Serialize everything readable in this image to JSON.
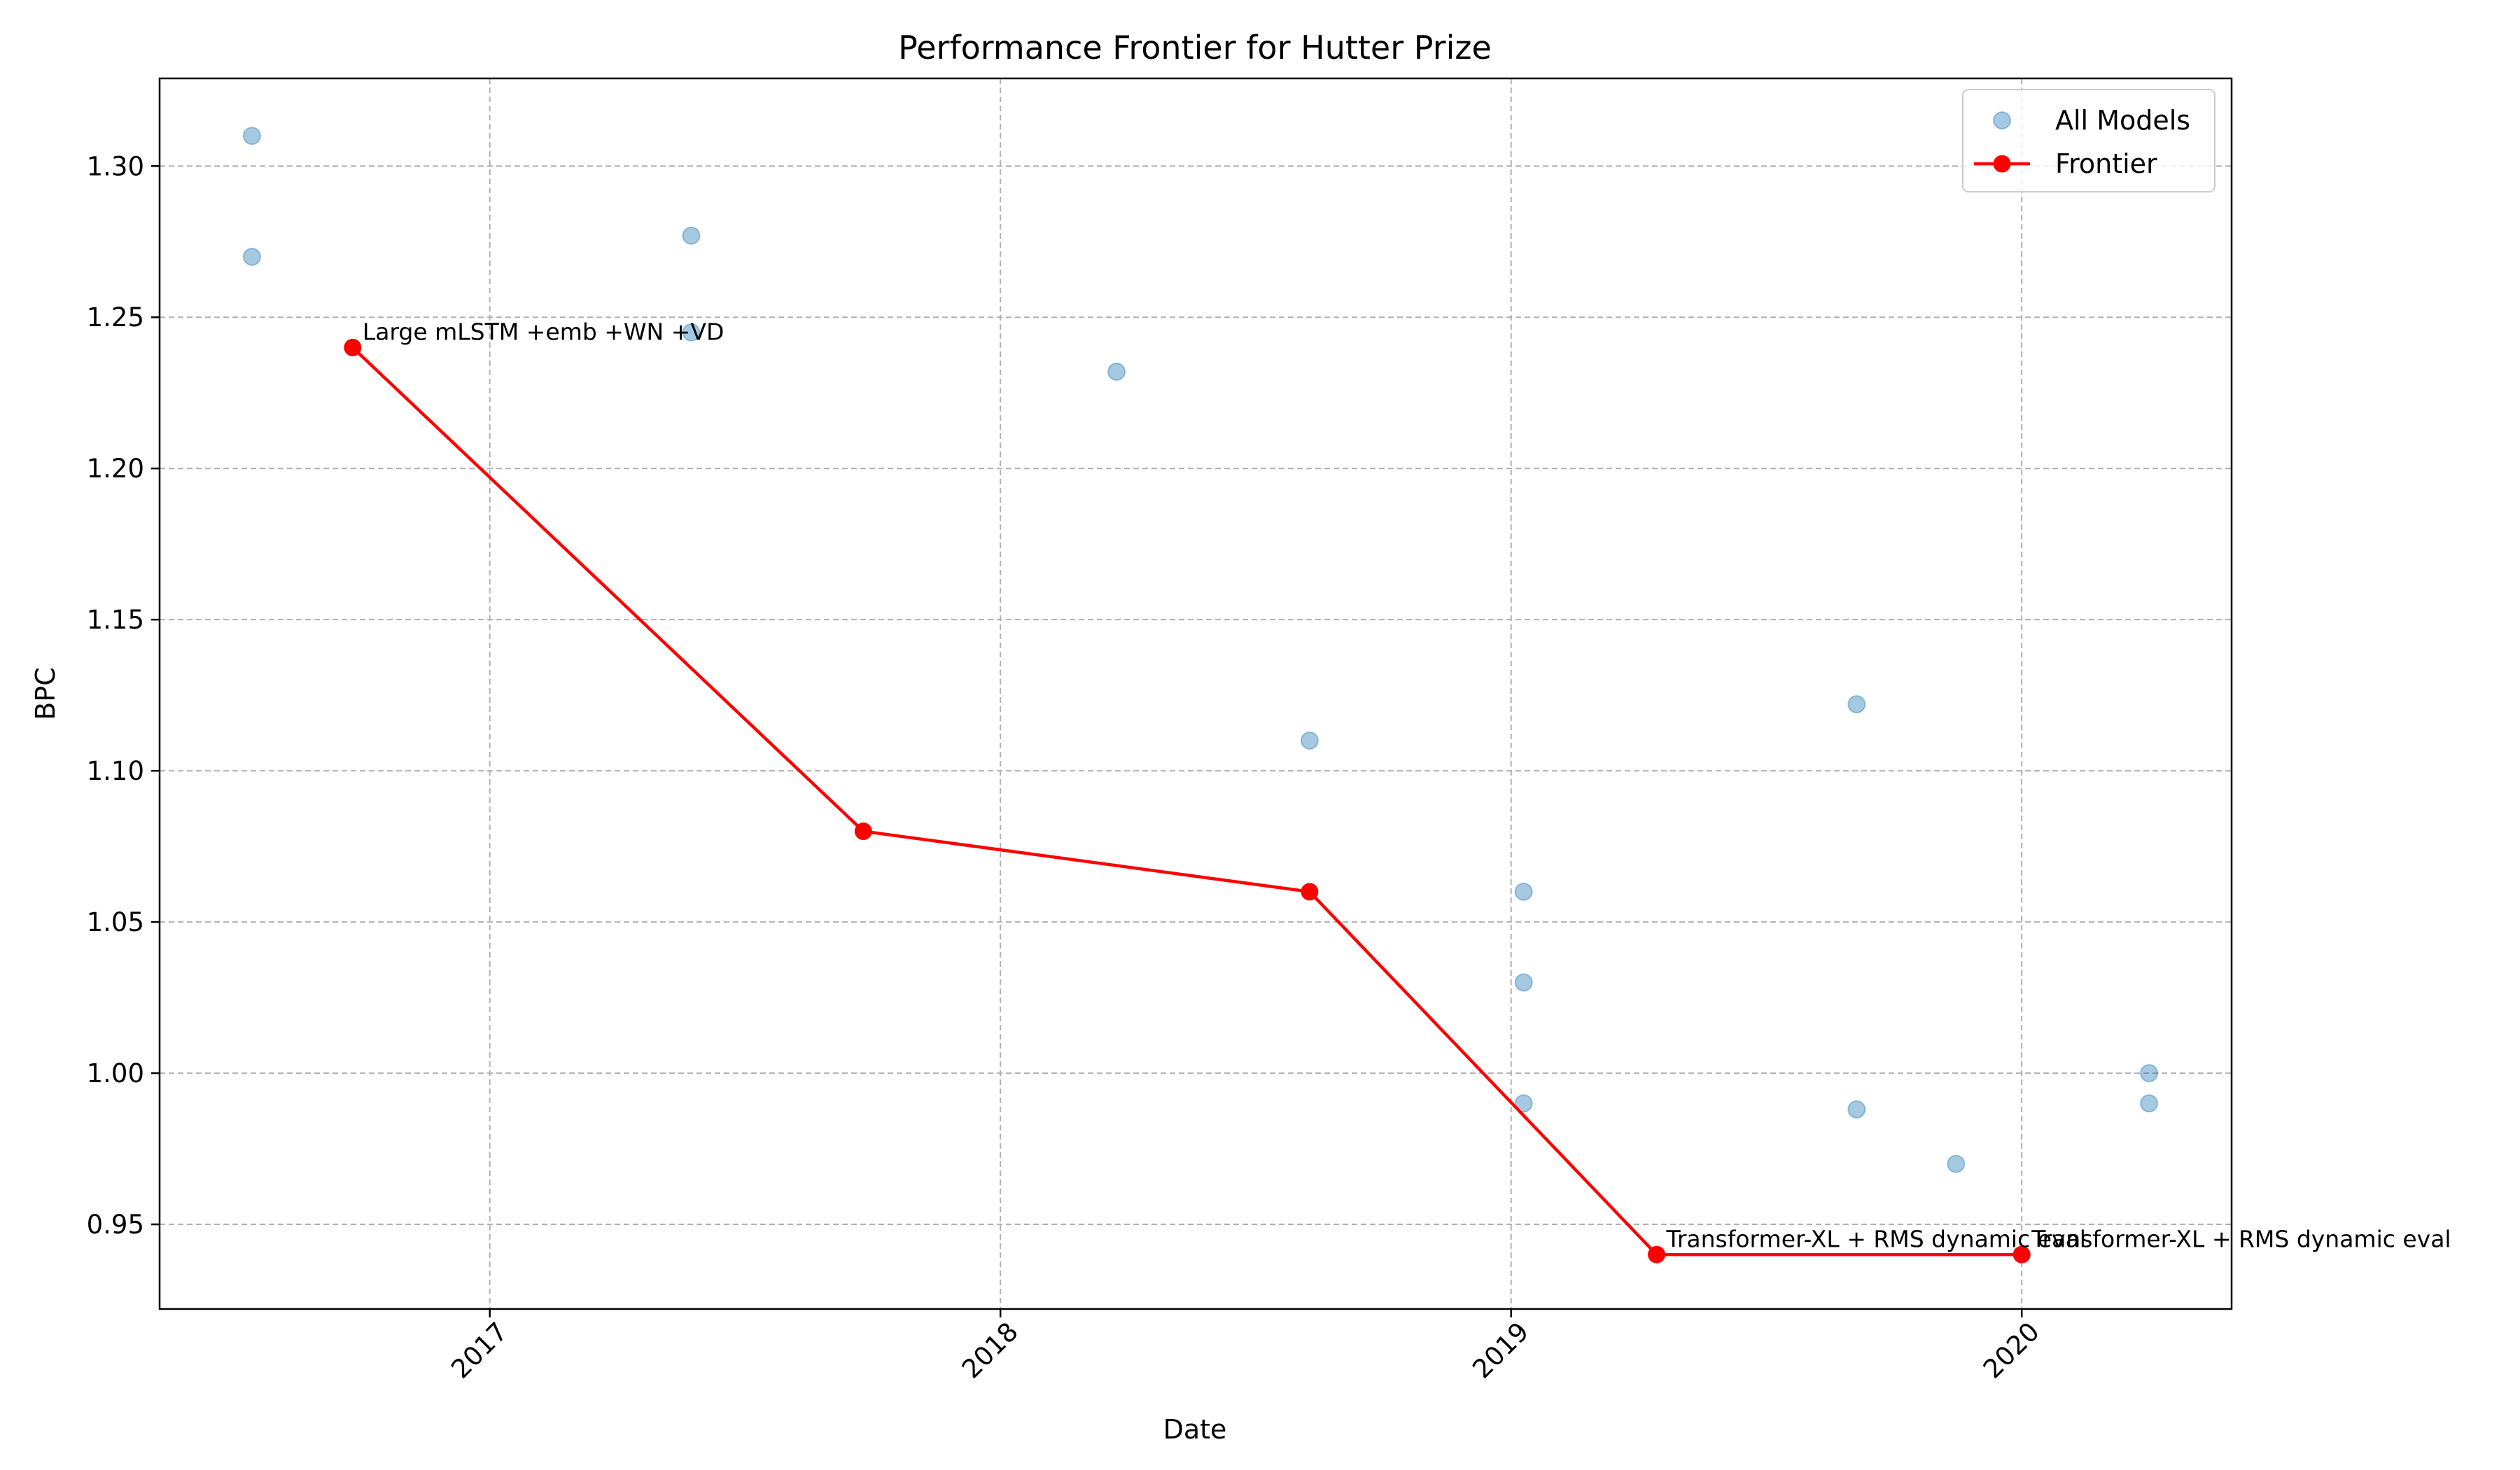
{
  "chart_data": {
    "type": "line",
    "title": "Performance Frontier for Hutter Prize",
    "xlabel": "Date",
    "ylabel": "BPC",
    "xlim": [
      "2016-05-10",
      "2020-05-30"
    ],
    "ylim": [
      0.922,
      1.329
    ],
    "x_ticks": [
      "2017-01-01",
      "2018-01-01",
      "2019-01-01",
      "2020-01-01"
    ],
    "x_tick_labels": [
      "2017",
      "2018",
      "2019",
      "2020"
    ],
    "y_ticks": [
      0.95,
      1.0,
      1.05,
      1.1,
      1.15,
      1.2,
      1.25,
      1.3
    ],
    "y_tick_labels": [
      "0.95",
      "1.00",
      "1.05",
      "1.10",
      "1.15",
      "1.20",
      "1.25",
      "1.30"
    ],
    "grid": true,
    "legend_position": "top-right",
    "colors": {
      "all_models": "#1f77b4",
      "frontier": "#ff0000"
    },
    "series": [
      {
        "name": "All Models",
        "kind": "scatter",
        "points": [
          {
            "x": "2016-07-15",
            "y": 1.31
          },
          {
            "x": "2016-07-15",
            "y": 1.27
          },
          {
            "x": "2017-05-25",
            "y": 1.277
          },
          {
            "x": "2017-05-25",
            "y": 1.245
          },
          {
            "x": "2018-03-25",
            "y": 1.232
          },
          {
            "x": "2018-08-10",
            "y": 1.11
          },
          {
            "x": "2019-01-10",
            "y": 1.06
          },
          {
            "x": "2019-01-10",
            "y": 1.03
          },
          {
            "x": "2019-01-10",
            "y": 0.99
          },
          {
            "x": "2019-09-05",
            "y": 1.122
          },
          {
            "x": "2019-09-05",
            "y": 0.988
          },
          {
            "x": "2019-11-15",
            "y": 0.97
          },
          {
            "x": "2020-04-01",
            "y": 1.0
          },
          {
            "x": "2020-04-01",
            "y": 0.99
          }
        ]
      },
      {
        "name": "Frontier",
        "kind": "line",
        "points": [
          {
            "x": "2016-09-25",
            "y": 1.24,
            "label": "Large mLSTM +emb +WN +VD"
          },
          {
            "x": "2017-09-25",
            "y": 1.08
          },
          {
            "x": "2018-08-10",
            "y": 1.06
          },
          {
            "x": "2019-04-15",
            "y": 0.94,
            "label": "Transformer-XL + RMS dynamic eval"
          },
          {
            "x": "2020-01-01",
            "y": 0.94,
            "label": "Transformer-XL + RMS dynamic eval"
          }
        ]
      }
    ]
  }
}
